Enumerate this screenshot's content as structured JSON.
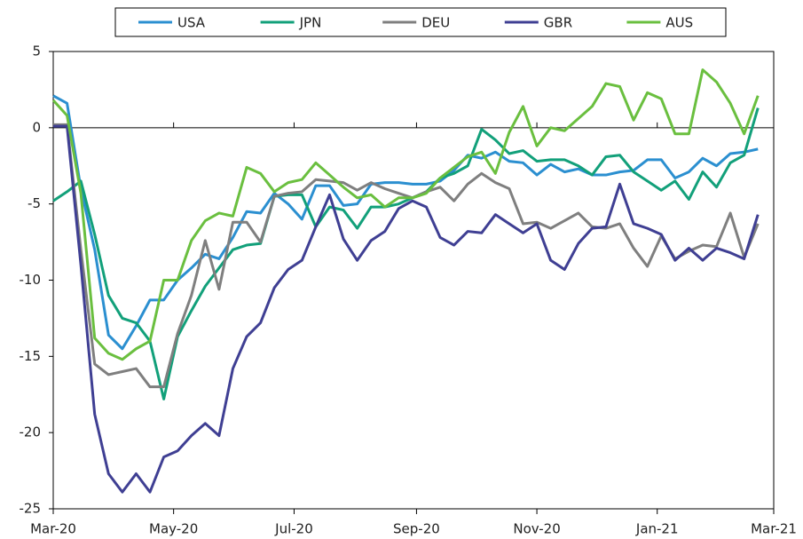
{
  "chart_data": {
    "type": "line",
    "x": [
      0,
      1,
      2,
      3,
      4,
      5,
      6,
      7,
      8,
      9,
      10,
      11,
      12,
      13,
      14,
      15,
      16,
      17,
      18,
      19,
      20,
      21,
      22,
      23,
      24,
      25,
      26,
      27,
      28,
      29,
      30,
      31,
      32,
      33,
      34,
      35,
      36,
      37,
      38,
      39,
      40,
      41,
      42,
      43,
      44,
      45,
      46,
      47,
      48,
      49,
      50,
      51
    ],
    "series": [
      {
        "name": "USA",
        "color": "#2b8fd0",
        "values": [
          2.1,
          1.6,
          -4,
          -8,
          -13.6,
          -14.5,
          -13,
          -11.3,
          -11.3,
          -10,
          -9.2,
          -8.3,
          -8.6,
          -7.2,
          -5.5,
          -5.6,
          -4.3,
          -5,
          -6,
          -3.8,
          -3.8,
          -5.1,
          -5,
          -3.7,
          -3.6,
          -3.6,
          -3.7,
          -3.7,
          -3.5,
          -2.8,
          -1.8,
          -2,
          -1.6,
          -2.2,
          -2.3,
          -3.1,
          -2.4,
          -2.9,
          -2.7,
          -3.1,
          -3.1,
          -2.9,
          -2.8,
          -2.1,
          -2.1,
          -3.3,
          -2.9,
          -2,
          -2.5,
          -1.7,
          -1.6,
          -1.4
        ]
      },
      {
        "name": "JPN",
        "color": "#12a07a",
        "values": [
          -4.8,
          -4.2,
          -3.5,
          -7,
          -11,
          -12.5,
          -12.8,
          -14,
          -17.8,
          -13.7,
          -12,
          -10.4,
          -9.2,
          -8,
          -7.7,
          -7.6,
          -4.5,
          -4.4,
          -4.4,
          -6.5,
          -5.2,
          -5.4,
          -6.6,
          -5.2,
          -5.2,
          -5,
          -4.6,
          -4.2,
          -3.3,
          -3,
          -2.5,
          -0.1,
          -0.8,
          -1.7,
          -1.5,
          -2.2,
          -2.1,
          -2.1,
          -2.5,
          -3.1,
          -1.9,
          -1.8,
          -2.9,
          -3.5,
          -4.1,
          -3.5,
          -4.7,
          -2.9,
          -3.9,
          -2.3,
          -1.8,
          1.3
        ]
      },
      {
        "name": "DEU",
        "color": "#7f7f7f",
        "values": [
          0.2,
          0.2,
          -8,
          -15.5,
          -16.2,
          -16,
          -15.8,
          -17,
          -17,
          -13.5,
          -11,
          -7.4,
          -10.6,
          -6.2,
          -6.2,
          -7.5,
          -4.5,
          -4.3,
          -4.2,
          -3.4,
          -3.5,
          -3.6,
          -4.1,
          -3.6,
          -4,
          -4.3,
          -4.6,
          -4.2,
          -3.9,
          -4.8,
          -3.7,
          -3,
          -3.6,
          -4,
          -6.3,
          -6.2,
          -6.6,
          -6.1,
          -5.6,
          -6.5,
          -6.6,
          -6.3,
          -7.9,
          -9.1,
          -7.1,
          -8.6,
          -8.1,
          -7.7,
          -7.8,
          -5.6,
          -8.5,
          -6.3
        ]
      },
      {
        "name": "GBR",
        "color": "#3f3f93",
        "values": [
          0.1,
          0.1,
          -9,
          -18.8,
          -22.7,
          -23.9,
          -22.7,
          -23.9,
          -21.6,
          -21.2,
          -20.2,
          -19.4,
          -20.2,
          -15.8,
          -13.7,
          -12.8,
          -10.5,
          -9.3,
          -8.7,
          -6.5,
          -4.4,
          -7.3,
          -8.7,
          -7.4,
          -6.8,
          -5.3,
          -4.8,
          -5.2,
          -7.2,
          -7.7,
          -6.8,
          -6.9,
          -5.7,
          -6.3,
          -6.9,
          -6.3,
          -8.7,
          -9.3,
          -7.6,
          -6.6,
          -6.5,
          -3.7,
          -6.3,
          -6.6,
          -7,
          -8.7,
          -7.9,
          -8.7,
          -7.9,
          -8.2,
          -8.6,
          -5.7
        ]
      },
      {
        "name": "AUS",
        "color": "#6abf3f",
        "values": [
          1.8,
          0.8,
          -4.3,
          -13.8,
          -14.8,
          -15.2,
          -14.5,
          -14,
          -10,
          -10,
          -7.4,
          -6.1,
          -5.6,
          -5.8,
          -2.6,
          -3,
          -4.2,
          -3.6,
          -3.4,
          -2.3,
          -3.1,
          -3.9,
          -4.6,
          -4.4,
          -5.2,
          -4.6,
          -4.6,
          -4.3,
          -3.3,
          -2.6,
          -1.9,
          -1.6,
          -3,
          -0.3,
          1.4,
          -1.2,
          0,
          -0.2,
          0.6,
          1.4,
          2.9,
          2.7,
          0.5,
          2.3,
          1.9,
          -0.4,
          -0.4,
          3.8,
          3,
          1.6,
          -0.4,
          2.1
        ]
      }
    ],
    "xlim": [
      0,
      52.14
    ],
    "xticks": [
      {
        "value": 0,
        "label": "Mar-20"
      },
      {
        "value": 8.71,
        "label": "May-20"
      },
      {
        "value": 17.43,
        "label": "Jul-20"
      },
      {
        "value": 26.29,
        "label": "Sep-20"
      },
      {
        "value": 35,
        "label": "Nov-20"
      },
      {
        "value": 43.71,
        "label": "Jan-21"
      },
      {
        "value": 52.14,
        "label": "Mar-21"
      }
    ],
    "ylim": [
      -25,
      5
    ],
    "yticks": [
      -25,
      -20,
      -15,
      -10,
      -5,
      0,
      5
    ],
    "legend": "top"
  }
}
